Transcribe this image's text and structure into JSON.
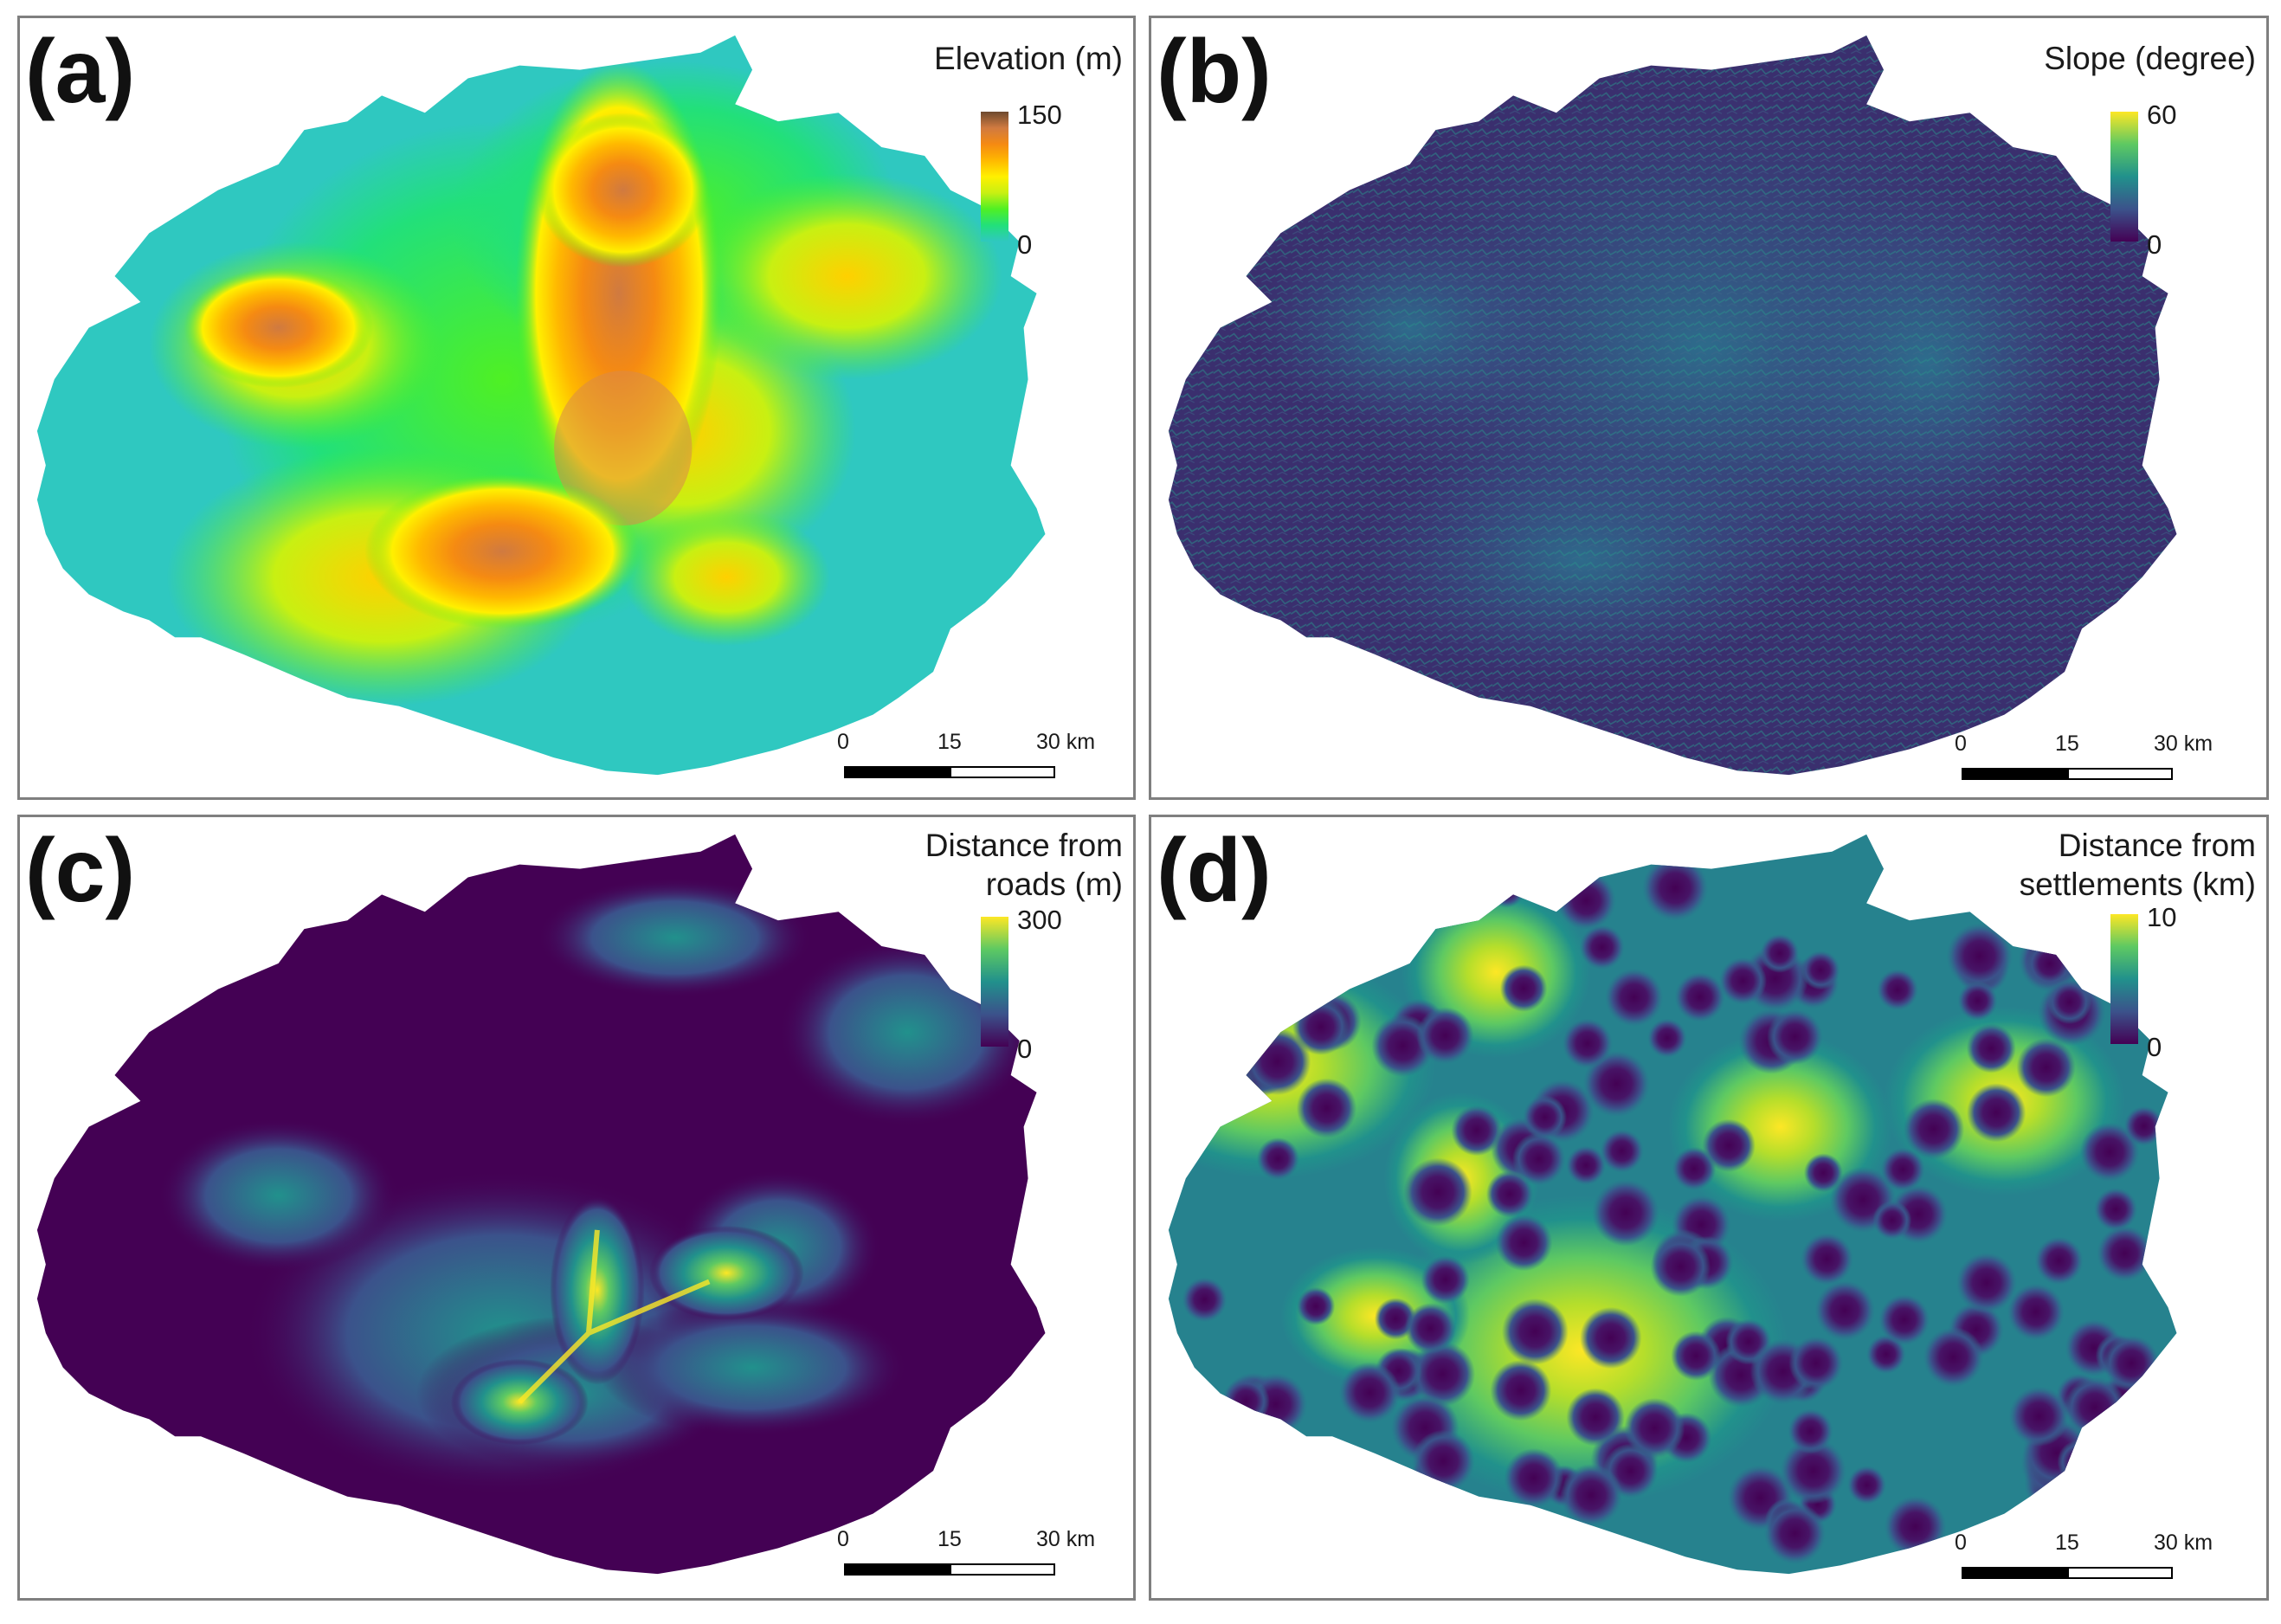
{
  "panels": [
    {
      "id": "a",
      "label": "(a)",
      "legend_title_lines": [
        "Elevation (m)"
      ],
      "legend_max": "150",
      "legend_min": "0",
      "colormap": [
        "#2fc8c0",
        "#22e07a",
        "#4ff024",
        "#c8f012",
        "#fff000",
        "#ffb800",
        "#f58a12",
        "#d07a40",
        "#6d4a2e"
      ],
      "scale": {
        "t0": "0",
        "t1": "15",
        "t2": "30 km"
      }
    },
    {
      "id": "b",
      "label": "(b)",
      "legend_title_lines": [
        "Slope (degree)"
      ],
      "legend_max": "60",
      "legend_min": "0",
      "colormap": [
        "#440154",
        "#3b528b",
        "#21918c",
        "#5ec962",
        "#fde725"
      ],
      "scale": {
        "t0": "0",
        "t1": "15",
        "t2": "30 km"
      }
    },
    {
      "id": "c",
      "label": "(c)",
      "legend_title_lines": [
        "Distance from",
        "roads (m)"
      ],
      "legend_max": "300",
      "legend_min": "0",
      "colormap": [
        "#440154",
        "#3b528b",
        "#21918c",
        "#5ec962",
        "#fde725"
      ],
      "scale": {
        "t0": "0",
        "t1": "15",
        "t2": "30 km"
      }
    },
    {
      "id": "d",
      "label": "(d)",
      "legend_title_lines": [
        "Distance from",
        "settlements (km)"
      ],
      "legend_max": "10",
      "legend_min": "0",
      "colormap": [
        "#440154",
        "#3b528b",
        "#21918c",
        "#5ec962",
        "#fde725"
      ],
      "scale": {
        "t0": "0",
        "t1": "15",
        "t2": "30 km"
      }
    }
  ]
}
